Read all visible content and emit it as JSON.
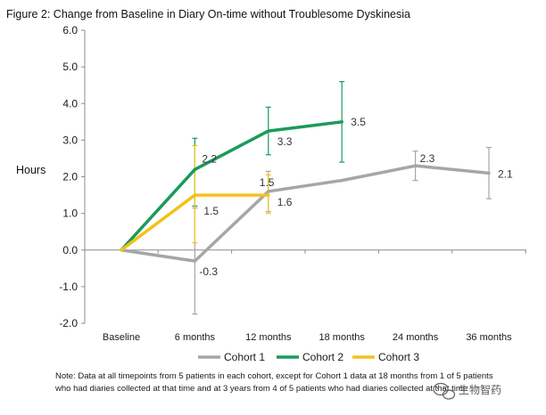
{
  "chart_data": {
    "type": "line",
    "title": "Figure 2: Change from Baseline in Diary On-time without Troublesome Dyskinesia",
    "xlabel": "",
    "ylabel": "Hours",
    "categories": [
      "Baseline",
      "6 months",
      "12 months",
      "18 months",
      "24 months",
      "36 months"
    ],
    "ylim": [
      -2.0,
      6.0
    ],
    "yticks": [
      "6.0",
      "5.0",
      "4.0",
      "3.0",
      "2.0",
      "1.0",
      "0.0",
      "-1.0",
      "-2.0"
    ],
    "ytick_values": [
      6,
      5,
      4,
      3,
      2,
      1,
      0,
      -1,
      -2
    ],
    "grid": false,
    "legend_position": "bottom",
    "series": [
      {
        "name": "Cohort 1",
        "color": "#a6a6a6",
        "values": [
          0,
          -0.3,
          1.6,
          1.9,
          2.3,
          2.1
        ],
        "error_low": [
          null,
          -1.75,
          1.05,
          null,
          1.9,
          1.4
        ],
        "error_high": [
          null,
          1.15,
          2.15,
          null,
          2.7,
          2.8
        ],
        "labels": [
          "",
          "-0.3",
          "1.6",
          "",
          "2.3",
          "2.1"
        ]
      },
      {
        "name": "Cohort 2",
        "color": "#1b9a5a",
        "values": [
          0,
          2.2,
          3.25,
          3.5,
          null,
          null
        ],
        "error_low": [
          null,
          1.2,
          2.6,
          2.4,
          null,
          null
        ],
        "error_high": [
          null,
          3.05,
          3.9,
          4.6,
          null,
          null
        ],
        "labels": [
          "",
          "2.2",
          "3.3",
          "3.5",
          "",
          ""
        ]
      },
      {
        "name": "Cohort 3",
        "color": "#f2c21b",
        "values": [
          0,
          1.5,
          1.5,
          null,
          null,
          null
        ],
        "error_low": [
          null,
          0.2,
          1.0,
          null,
          null,
          null
        ],
        "error_high": [
          null,
          2.85,
          2.05,
          null,
          null,
          null
        ],
        "labels": [
          "",
          "1.5",
          "1.5",
          "",
          "",
          ""
        ]
      }
    ],
    "note_lines": [
      "Note: Data at all timepoints from 5 patients in each cohort, except for Cohort 1 data at 18 months from 1 of 5 patients",
      "who had diaries collected at that time and at 3 years from 4 of 5 patients who had diaries collected at that time"
    ]
  },
  "watermark": "生物智药"
}
